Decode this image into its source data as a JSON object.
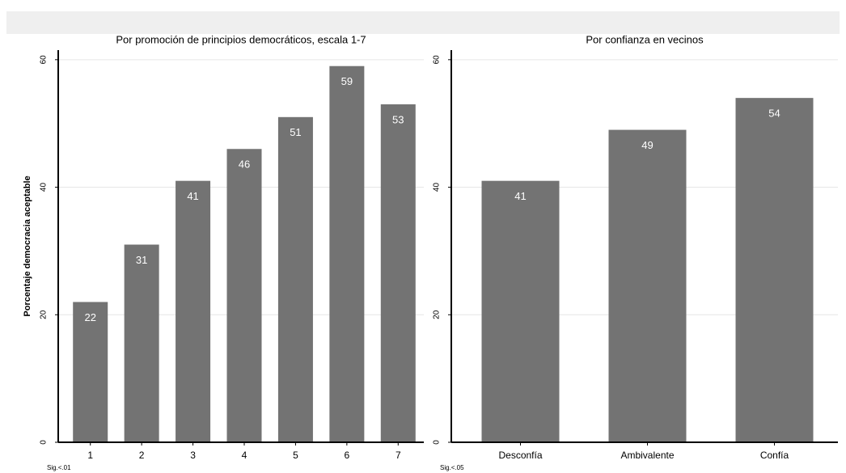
{
  "chart_data": [
    {
      "type": "bar",
      "title": "Por promoción de principios democráticos, escala 1-7",
      "y_label": "Porcentaje democracia aceptable",
      "categories": [
        "1",
        "2",
        "3",
        "4",
        "5",
        "6",
        "7"
      ],
      "values": [
        22,
        31,
        41,
        46,
        51,
        59,
        53
      ],
      "color": "#737373",
      "ylim": [
        0,
        61.5
      ],
      "yticks": [
        0,
        20,
        40,
        60
      ],
      "grid": true,
      "note": "Sig.<.01"
    },
    {
      "type": "bar",
      "title": "Por confianza en vecinos",
      "categories": [
        "Desconfía",
        "Ambivalente",
        "Confía"
      ],
      "values": [
        41,
        49,
        54
      ],
      "color": "#737373",
      "ylim": [
        0,
        61.5
      ],
      "yticks": [
        0,
        20,
        40,
        60
      ],
      "grid": true,
      "note": "Sig.<.05"
    }
  ]
}
